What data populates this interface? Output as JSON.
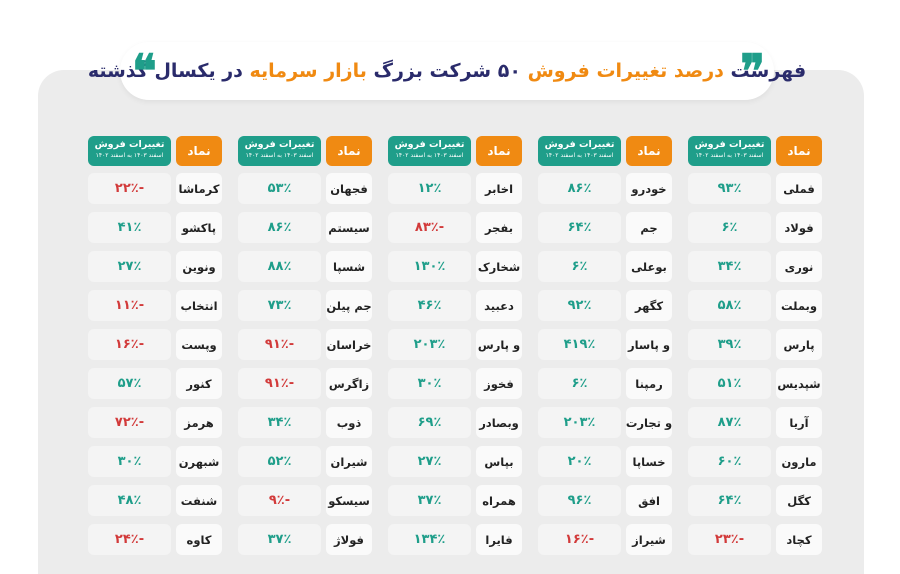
{
  "title": {
    "part1": "فهرست",
    "part2": "درصد تغییرات فروش",
    "part3": "۵۰ شرکت بزرگ",
    "part4": "بازار سرمایه",
    "part5": "در یکسال گذشته",
    "quote_right": "❞",
    "quote_left": "❝"
  },
  "headers": {
    "symbol": "نماد",
    "change": "تغییرات فروش",
    "period": "اسفند ۱۴۰۳ به اسفند ۱۴۰۲"
  },
  "colors": {
    "accent_orange": "#f08a12",
    "accent_teal": "#1f9e8a",
    "negative_red": "#d23a3a",
    "title_navy": "#2a2b6b"
  },
  "groups": [
    {
      "rows": [
        {
          "symbol": "فملی",
          "change": "۹۳٪",
          "sign": "pos"
        },
        {
          "symbol": "فولاد",
          "change": "۶٪",
          "sign": "pos"
        },
        {
          "symbol": "نوری",
          "change": "۳۴٪",
          "sign": "pos"
        },
        {
          "symbol": "وبملت",
          "change": "۵۸٪",
          "sign": "pos"
        },
        {
          "symbol": "پارس",
          "change": "۳۹٪",
          "sign": "pos"
        },
        {
          "symbol": "شپدیس",
          "change": "۵۱٪",
          "sign": "pos"
        },
        {
          "symbol": "آریا",
          "change": "۸۷٪",
          "sign": "pos"
        },
        {
          "symbol": "مارون",
          "change": "۶۰٪",
          "sign": "pos"
        },
        {
          "symbol": "کگل",
          "change": "۶۴٪",
          "sign": "pos"
        },
        {
          "symbol": "کچاد",
          "change": "-۲۳٪",
          "sign": "neg"
        }
      ]
    },
    {
      "rows": [
        {
          "symbol": "خودرو",
          "change": "۸۶٪",
          "sign": "pos"
        },
        {
          "symbol": "جم",
          "change": "۶۴٪",
          "sign": "pos"
        },
        {
          "symbol": "بوعلی",
          "change": "۶٪",
          "sign": "pos"
        },
        {
          "symbol": "کگهر",
          "change": "۹۲٪",
          "sign": "pos"
        },
        {
          "symbol": "و پاسار",
          "change": "۴۱۹٪",
          "sign": "pos"
        },
        {
          "symbol": "رمپنا",
          "change": "۶٪",
          "sign": "pos"
        },
        {
          "symbol": "و تجارت",
          "change": "۲۰۳٪",
          "sign": "pos"
        },
        {
          "symbol": "خساپا",
          "change": "۲۰٪",
          "sign": "pos"
        },
        {
          "symbol": "افق",
          "change": "۹۶٪",
          "sign": "pos"
        },
        {
          "symbol": "شیراز",
          "change": "-۱۶٪",
          "sign": "neg"
        }
      ]
    },
    {
      "rows": [
        {
          "symbol": "اخابر",
          "change": "۱۲٪",
          "sign": "pos"
        },
        {
          "symbol": "بفجر",
          "change": "-۸۳٪",
          "sign": "neg"
        },
        {
          "symbol": "شخارک",
          "change": "۱۳۰٪",
          "sign": "pos"
        },
        {
          "symbol": "دعبید",
          "change": "۴۶٪",
          "sign": "pos"
        },
        {
          "symbol": "و پارس",
          "change": "۲۰۳٪",
          "sign": "pos"
        },
        {
          "symbol": "فخوز",
          "change": "۳۰٪",
          "sign": "pos"
        },
        {
          "symbol": "وبصادر",
          "change": "۶۹٪",
          "sign": "pos"
        },
        {
          "symbol": "بپاس",
          "change": "۲۷٪",
          "sign": "pos"
        },
        {
          "symbol": "همراه",
          "change": "۳۷٪",
          "sign": "pos"
        },
        {
          "symbol": "فایرا",
          "change": "۱۳۴٪",
          "sign": "pos"
        }
      ]
    },
    {
      "rows": [
        {
          "symbol": "فجهان",
          "change": "۵۳٪",
          "sign": "pos"
        },
        {
          "symbol": "سیستم",
          "change": "۸۶٪",
          "sign": "pos"
        },
        {
          "symbol": "شسپا",
          "change": "۸۸٪",
          "sign": "pos"
        },
        {
          "symbol": "جم پیلن",
          "change": "۷۳٪",
          "sign": "pos"
        },
        {
          "symbol": "خراسان",
          "change": "-۹۱٪",
          "sign": "neg"
        },
        {
          "symbol": "زاگرس",
          "change": "-۹۱٪",
          "sign": "neg"
        },
        {
          "symbol": "ذوب",
          "change": "۳۴٪",
          "sign": "pos"
        },
        {
          "symbol": "شیران",
          "change": "۵۲٪",
          "sign": "pos"
        },
        {
          "symbol": "سیسکو",
          "change": "-۹٪",
          "sign": "neg"
        },
        {
          "symbol": "فولاژ",
          "change": "۳۷٪",
          "sign": "pos"
        }
      ]
    },
    {
      "rows": [
        {
          "symbol": "کرماشا",
          "change": "-۲۲٪",
          "sign": "neg"
        },
        {
          "symbol": "پاکشو",
          "change": "۴۱٪",
          "sign": "pos"
        },
        {
          "symbol": "ونوین",
          "change": "۲۷٪",
          "sign": "pos"
        },
        {
          "symbol": "انتخاب",
          "change": "-۱۱٪",
          "sign": "neg"
        },
        {
          "symbol": "وپست",
          "change": "-۱۶٪",
          "sign": "neg"
        },
        {
          "symbol": "کنور",
          "change": "۵۷٪",
          "sign": "pos"
        },
        {
          "symbol": "هرمز",
          "change": "-۷۲٪",
          "sign": "neg"
        },
        {
          "symbol": "شبهرن",
          "change": "۳۰٪",
          "sign": "pos"
        },
        {
          "symbol": "شنفت",
          "change": "۴۸٪",
          "sign": "pos"
        },
        {
          "symbol": "کاوه",
          "change": "-۲۴٪",
          "sign": "neg"
        }
      ]
    }
  ]
}
